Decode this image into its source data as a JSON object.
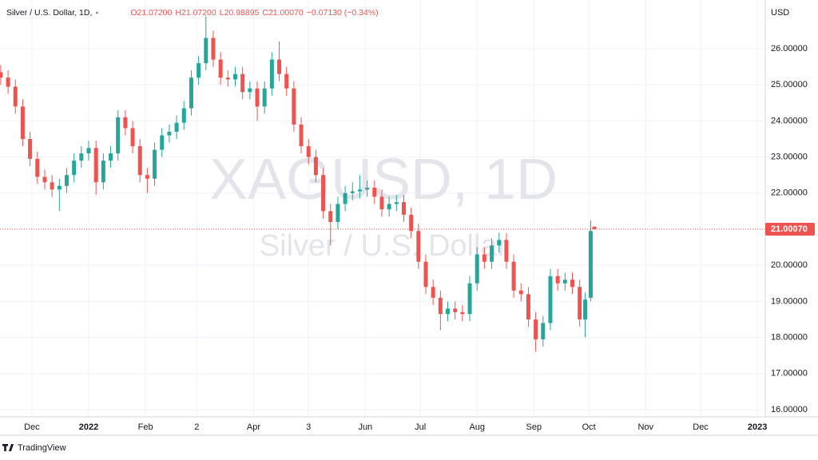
{
  "header": {
    "symbol": "Silver / U.S. Dollar, 1D,",
    "ohlc": [
      "O21.07200",
      "H21.07200",
      "L20.98895",
      "C21.00070"
    ],
    "change": "−0.07130 (−0.34%)"
  },
  "watermark": {
    "ticker": "XAGUSD, 1D",
    "name": "Silver / U.S. Dollar"
  },
  "footer": {
    "brand": "TradingView"
  },
  "chart_data": {
    "type": "candlestick",
    "currency": "USD",
    "up_color": "#26a69a",
    "down_color": "#ef5350",
    "grid": true,
    "xlim": [
      -17.4,
      400.3
    ],
    "ylim": [
      15.8,
      27.24
    ],
    "xticks": [
      {
        "value": 0,
        "label": "Dec"
      },
      {
        "value": 31,
        "label": "2022"
      },
      {
        "value": 62,
        "label": "Feb"
      },
      {
        "value": 90,
        "label": "2"
      },
      {
        "value": 121,
        "label": "Apr"
      },
      {
        "value": 151,
        "label": "3"
      },
      {
        "value": 182,
        "label": "Jun"
      },
      {
        "value": 212,
        "label": "Jul"
      },
      {
        "value": 243,
        "label": "Aug"
      },
      {
        "value": 274,
        "label": "Sep"
      },
      {
        "value": 304,
        "label": "Oct"
      },
      {
        "value": 335,
        "label": "Nov"
      },
      {
        "value": 365,
        "label": "Dec"
      },
      {
        "value": 396,
        "label": "2023"
      }
    ],
    "yticks": [
      {
        "value": 16,
        "label": "16.00000"
      },
      {
        "value": 17,
        "label": "17.00000"
      },
      {
        "value": 18,
        "label": "18.00000"
      },
      {
        "value": 19,
        "label": "19.00000"
      },
      {
        "value": 20,
        "label": "20.00000"
      },
      {
        "value": 21,
        "label": "21.00000"
      },
      {
        "value": 22,
        "label": "22.00000"
      },
      {
        "value": 23,
        "label": "23.00000"
      },
      {
        "value": 24,
        "label": "24.00000"
      },
      {
        "value": 25,
        "label": "25.00000"
      },
      {
        "value": 26,
        "label": "26.00000"
      }
    ],
    "last_price": {
      "value": 21.0007,
      "label": "21.00070"
    },
    "x": [
      -17,
      -13,
      -9,
      -5,
      -1,
      3,
      7,
      11,
      15,
      19,
      23,
      27,
      31,
      35,
      39,
      43,
      47,
      51,
      55,
      59,
      63,
      67,
      71,
      75,
      79,
      83,
      87,
      91,
      95,
      99,
      103,
      107,
      111,
      115,
      119,
      123,
      127,
      131,
      135,
      139,
      143,
      147,
      151,
      155,
      159,
      163,
      167,
      171,
      175,
      179,
      183,
      187,
      191,
      195,
      199,
      203,
      207,
      211,
      215,
      219,
      223,
      227,
      231,
      235,
      239,
      243,
      247,
      251,
      255,
      259,
      263,
      267,
      271,
      275,
      279,
      283,
      287,
      291,
      295,
      299,
      302,
      305,
      307
    ],
    "open": [
      25.35,
      25.2,
      24.95,
      24.4,
      23.5,
      22.95,
      22.45,
      22.3,
      22.1,
      22.2,
      22.5,
      22.9,
      23.1,
      23.25,
      22.3,
      22.9,
      23.1,
      24.1,
      23.8,
      23.3,
      22.5,
      22.4,
      23.2,
      23.6,
      23.7,
      23.95,
      24.35,
      25.2,
      25.6,
      26.3,
      25.7,
      25.2,
      25.15,
      25.3,
      24.8,
      24.9,
      24.4,
      24.9,
      25.7,
      25.3,
      24.9,
      23.9,
      23.3,
      23.0,
      22.5,
      21.5,
      21.2,
      21.7,
      22.0,
      22.05,
      22.1,
      22.15,
      21.9,
      21.55,
      21.7,
      21.75,
      21.4,
      20.95,
      20.1,
      19.4,
      19.1,
      18.65,
      18.8,
      18.7,
      18.65,
      19.5,
      20.3,
      20.1,
      20.55,
      20.7,
      20.1,
      19.3,
      19.2,
      18.5,
      17.95,
      18.4,
      19.7,
      19.5,
      19.6,
      19.4,
      18.5,
      19.1,
      21.072
    ],
    "high": [
      25.55,
      25.4,
      25.15,
      24.6,
      23.7,
      23.15,
      22.65,
      22.5,
      22.4,
      22.7,
      23.1,
      23.3,
      23.45,
      23.45,
      23.1,
      23.3,
      24.3,
      24.3,
      24.0,
      23.5,
      22.7,
      23.4,
      23.8,
      23.9,
      24.15,
      24.55,
      25.4,
      25.8,
      26.9,
      26.5,
      25.9,
      25.4,
      25.5,
      25.5,
      25.1,
      25.1,
      25.1,
      25.9,
      26.2,
      25.5,
      25.1,
      24.1,
      23.5,
      23.2,
      22.7,
      21.7,
      21.9,
      22.2,
      22.3,
      22.5,
      22.35,
      22.35,
      22.1,
      21.9,
      21.95,
      21.95,
      21.6,
      21.15,
      20.3,
      19.6,
      19.3,
      19.0,
      19.0,
      18.9,
      19.7,
      20.5,
      20.5,
      20.75,
      20.9,
      20.9,
      20.3,
      19.5,
      19.4,
      18.7,
      18.6,
      19.9,
      19.9,
      19.8,
      19.8,
      19.6,
      19.25,
      21.25,
      21.072
    ],
    "low": [
      25.0,
      24.75,
      24.2,
      23.3,
      22.75,
      22.25,
      22.1,
      21.9,
      21.5,
      22.0,
      22.3,
      22.7,
      22.9,
      21.95,
      22.1,
      22.7,
      22.9,
      23.6,
      23.1,
      22.3,
      22.0,
      22.2,
      23.0,
      23.4,
      23.5,
      23.75,
      24.15,
      25.0,
      25.4,
      25.5,
      25.0,
      24.95,
      24.95,
      24.6,
      24.6,
      24.0,
      24.2,
      24.7,
      25.1,
      24.7,
      23.7,
      23.1,
      22.8,
      22.3,
      21.3,
      20.55,
      21.0,
      21.5,
      21.8,
      21.85,
      21.9,
      21.7,
      21.35,
      21.35,
      21.5,
      21.2,
      20.75,
      19.9,
      19.2,
      18.9,
      18.2,
      18.45,
      18.5,
      18.45,
      18.45,
      19.3,
      19.9,
      19.9,
      20.35,
      19.9,
      19.1,
      19.0,
      18.3,
      17.6,
      17.75,
      18.2,
      19.3,
      19.3,
      19.2,
      18.3,
      18.0,
      19.0,
      20.98895
    ],
    "close": [
      25.2,
      24.95,
      24.4,
      23.5,
      22.95,
      22.45,
      22.3,
      22.1,
      22.2,
      22.5,
      22.9,
      23.1,
      23.25,
      22.3,
      22.9,
      23.1,
      24.1,
      23.8,
      23.3,
      22.5,
      22.4,
      23.2,
      23.6,
      23.7,
      23.95,
      24.35,
      25.2,
      25.6,
      26.3,
      25.7,
      25.2,
      25.15,
      25.3,
      24.8,
      24.9,
      24.4,
      24.9,
      25.7,
      25.3,
      24.9,
      23.9,
      23.3,
      23.0,
      22.5,
      21.5,
      21.2,
      21.7,
      22.0,
      22.05,
      22.1,
      22.15,
      21.9,
      21.55,
      21.7,
      21.75,
      21.4,
      20.95,
      20.1,
      19.4,
      19.1,
      18.65,
      18.8,
      18.7,
      18.65,
      19.5,
      20.3,
      20.1,
      20.55,
      20.7,
      20.1,
      19.3,
      19.2,
      18.5,
      17.95,
      18.4,
      19.7,
      19.5,
      19.6,
      19.4,
      18.5,
      19.05,
      20.95,
      21.0007
    ]
  }
}
